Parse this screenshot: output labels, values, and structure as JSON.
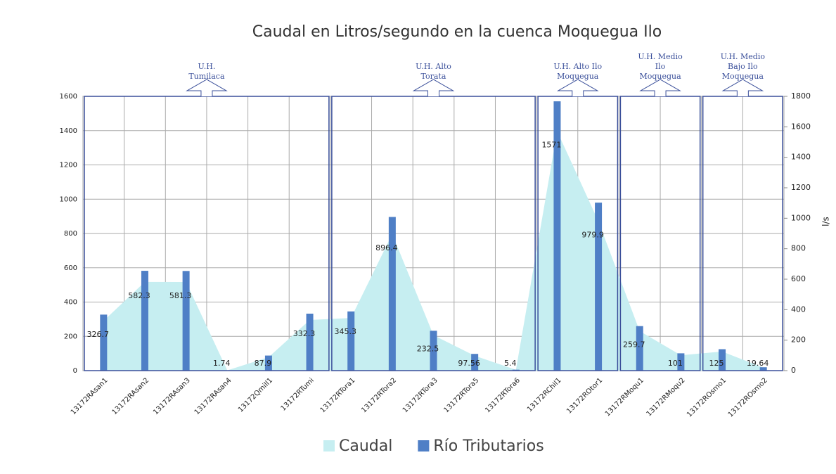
{
  "chart_data": {
    "type": "bar-area",
    "title": "Caudal en Litros/segundo en la cuenca Moquegua Ilo",
    "y2_label": "l/s",
    "categories": [
      "13172RAsan1",
      "13172RAsan2",
      "13172RAsan3",
      "13172RAsan4",
      "13172Qmill1",
      "13172RTumi",
      "13172RTora1",
      "13172RTora2",
      "13172RTora3",
      "13172RTora5",
      "13172RTora6",
      "13172RChil1",
      "13172ROtor1",
      "13172RMoqu1",
      "13172RMoqu2",
      "13172ROsmo1",
      "13172ROsmo2"
    ],
    "series": [
      {
        "name": "Caudal",
        "kind": "area",
        "axis": "y2",
        "color": "#c6eef1",
        "values": [
          326.7,
          582.3,
          581.3,
          1.74,
          87.9,
          332.3,
          345.3,
          896.4,
          232.5,
          97.56,
          5.4,
          1571,
          979.9,
          259.7,
          101,
          125,
          19.64
        ]
      },
      {
        "name": "Río Tributarios",
        "kind": "bar",
        "color": "#4f7fc6",
        "values": [
          326.7,
          582.3,
          581.3,
          1.74,
          87.9,
          332.3,
          345.3,
          896.4,
          232.5,
          97.56,
          5.4,
          1571,
          979.9,
          259.7,
          101,
          125,
          19.64
        ]
      }
    ],
    "ylim": [
      0,
      1600
    ],
    "yticks": [
      0,
      200,
      400,
      600,
      800,
      1000,
      1200,
      1400,
      1600
    ],
    "y2lim": [
      0,
      1800
    ],
    "y2ticks": [
      0,
      200,
      400,
      600,
      800,
      1000,
      1200,
      1400,
      1600,
      1800
    ],
    "grid": true,
    "legend": "bottom",
    "groups": [
      [
        "U.H.",
        "Tumilaca"
      ],
      [
        "U.H. Alto",
        "Torata"
      ],
      [
        "U.H. Alto Ilo",
        "Moquegua"
      ],
      [
        "U.H. Medio",
        "Ilo",
        "Moquegua"
      ],
      [
        "U.H. Medio",
        "Bajo Ilo",
        "Moquegua"
      ]
    ]
  }
}
